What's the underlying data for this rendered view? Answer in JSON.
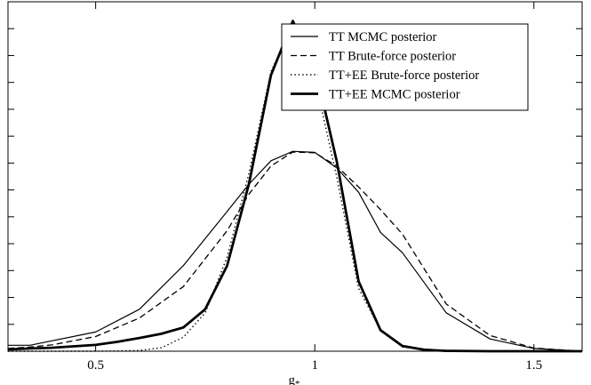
{
  "chart_data": {
    "type": "line",
    "title": "",
    "xlabel": "g",
    "xlabel_subscript": "*",
    "ylabel": "",
    "xlim": [
      0.3,
      1.61
    ],
    "ylim": [
      0,
      1.0
    ],
    "xticks": [
      {
        "value": 0.5,
        "label": "0.5"
      },
      {
        "value": 1.0,
        "label": "1"
      },
      {
        "value": 1.5,
        "label": "1.5"
      }
    ],
    "yticks_minor_count": 13,
    "grid": false,
    "legend_position": "top-right",
    "series": [
      {
        "name": "TT MCMC posterior",
        "style": "solid-thin",
        "color": "#000000",
        "x": [
          0.3,
          0.35,
          0.5,
          0.6,
          0.7,
          0.8,
          0.85,
          0.9,
          0.95,
          1.0,
          1.05,
          1.1,
          1.15,
          1.2,
          1.3,
          1.4,
          1.5,
          1.61
        ],
        "y": [
          0.017,
          0.017,
          0.055,
          0.12,
          0.245,
          0.4,
          0.478,
          0.545,
          0.572,
          0.569,
          0.525,
          0.455,
          0.34,
          0.282,
          0.11,
          0.035,
          0.008,
          0.0
        ]
      },
      {
        "name": "TT Brute-force posterior",
        "style": "dashed",
        "color": "#000000",
        "x": [
          0.3,
          0.35,
          0.4,
          0.5,
          0.6,
          0.7,
          0.8,
          0.85,
          0.9,
          0.95,
          1.0,
          1.05,
          1.1,
          1.15,
          1.2,
          1.25,
          1.3,
          1.4,
          1.5,
          1.61
        ],
        "y": [
          0.008,
          0.012,
          0.018,
          0.042,
          0.095,
          0.185,
          0.345,
          0.45,
          0.53,
          0.57,
          0.568,
          0.53,
          0.47,
          0.405,
          0.335,
          0.235,
          0.135,
          0.045,
          0.009,
          0.0
        ]
      },
      {
        "name": "TT+EE Brute-force posterior",
        "style": "dotted",
        "color": "#000000",
        "x": [
          0.3,
          0.5,
          0.6,
          0.65,
          0.7,
          0.75,
          0.8,
          0.85,
          0.9,
          0.95,
          1.0,
          1.05,
          1.1,
          1.15,
          1.2,
          1.3,
          1.4,
          1.61
        ],
        "y": [
          0.0,
          0.0,
          0.002,
          0.01,
          0.04,
          0.11,
          0.27,
          0.51,
          0.8,
          0.935,
          0.78,
          0.5,
          0.18,
          0.06,
          0.012,
          0.001,
          0.0,
          0.0
        ]
      },
      {
        "name": "TT+EE  MCMC posterior",
        "style": "solid-thick",
        "color": "#000000",
        "x": [
          0.3,
          0.35,
          0.4,
          0.5,
          0.55,
          0.6,
          0.65,
          0.7,
          0.75,
          0.8,
          0.85,
          0.9,
          0.95,
          1.0,
          1.05,
          1.1,
          1.15,
          1.2,
          1.25,
          1.3,
          1.4,
          1.61
        ],
        "y": [
          0.005,
          0.008,
          0.01,
          0.018,
          0.027,
          0.038,
          0.05,
          0.068,
          0.12,
          0.245,
          0.48,
          0.79,
          0.945,
          0.815,
          0.545,
          0.2,
          0.06,
          0.015,
          0.004,
          0.001,
          0.0,
          0.0
        ]
      }
    ]
  }
}
